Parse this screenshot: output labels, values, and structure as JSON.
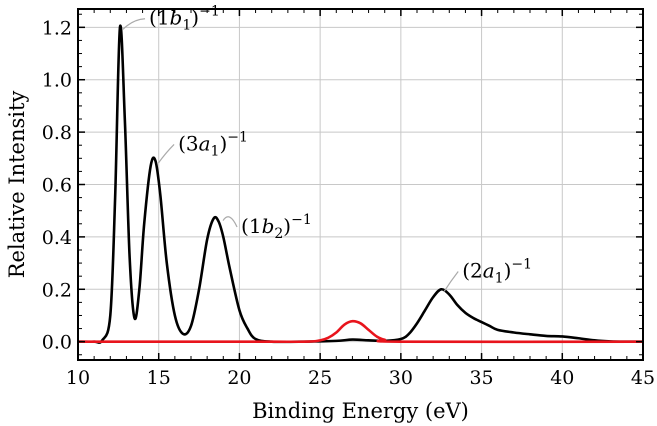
{
  "chart_data": {
    "type": "line",
    "xlabel": "Binding Energy (eV)",
    "ylabel": "Relative Intensity",
    "xlim": [
      10,
      45
    ],
    "ylim": [
      -0.07,
      1.27
    ],
    "xticks": [
      10,
      15,
      20,
      25,
      30,
      35,
      40,
      45
    ],
    "xtick_labels": [
      "10",
      "15",
      "20",
      "25",
      "30",
      "35",
      "40",
      "45"
    ],
    "yticks": [
      0.0,
      0.2,
      0.4,
      0.6,
      0.8,
      1.0,
      1.2
    ],
    "ytick_labels": [
      "0.0",
      "0.2",
      "0.4",
      "0.6",
      "0.8",
      "1.0",
      "1.2"
    ],
    "grid": true,
    "series": [
      {
        "color": "#000000",
        "x": [
          10,
          11,
          11.5,
          12,
          12.3,
          12.6,
          12.9,
          13.2,
          13.5,
          13.8,
          14.1,
          14.5,
          14.8,
          15.1,
          15.5,
          16,
          16.5,
          17,
          17.5,
          18,
          18.4,
          18.7,
          19,
          19.4,
          20,
          20.5,
          21,
          22,
          24,
          26,
          27,
          28,
          29,
          30,
          30.5,
          31,
          31.5,
          32,
          32.5,
          33,
          33.5,
          34,
          34.5,
          35,
          35.5,
          36,
          37,
          38,
          39,
          40,
          41,
          42,
          43,
          44,
          45
        ],
        "y": [
          0,
          0,
          0.005,
          0.1,
          0.55,
          1.2,
          0.85,
          0.32,
          0.09,
          0.2,
          0.45,
          0.67,
          0.69,
          0.56,
          0.3,
          0.1,
          0.03,
          0.06,
          0.2,
          0.39,
          0.47,
          0.46,
          0.4,
          0.28,
          0.12,
          0.05,
          0.01,
          0,
          0,
          0.003,
          0.008,
          0.005,
          0.003,
          0.01,
          0.03,
          0.07,
          0.12,
          0.17,
          0.2,
          0.18,
          0.14,
          0.11,
          0.09,
          0.075,
          0.06,
          0.045,
          0.035,
          0.028,
          0.022,
          0.02,
          0.013,
          0.005,
          0.001,
          0,
          0
        ]
      },
      {
        "color": "#e8141c",
        "x": [
          10,
          20,
          24,
          25,
          25.5,
          26,
          26.5,
          27,
          27.5,
          28,
          28.5,
          29,
          30,
          45
        ],
        "y": [
          0,
          0,
          0,
          0.005,
          0.015,
          0.035,
          0.065,
          0.078,
          0.07,
          0.045,
          0.02,
          0.007,
          0,
          0
        ]
      }
    ],
    "annotations": [
      {
        "label": "(1b1)",
        "orb": "b",
        "sub": "1",
        "lead": "1",
        "sup": "−1",
        "x": 12.6,
        "y": 1.2,
        "tx": 14.4,
        "ty": 1.21
      },
      {
        "label": "(3a1)",
        "orb": "a",
        "sub": "1",
        "lead": "3",
        "sup": "−1",
        "x": 14.8,
        "y": 0.69,
        "tx": 16.2,
        "ty": 0.73
      },
      {
        "label": "(1b2)",
        "orb": "b",
        "sub": "2",
        "lead": "1",
        "sup": "−1",
        "x": 18.8,
        "y": 0.47,
        "tx": 20.1,
        "ty": 0.415
      },
      {
        "label": "(2a1)",
        "orb": "a",
        "sub": "1",
        "lead": "2",
        "sup": "−1",
        "x": 32.5,
        "y": 0.2,
        "tx": 33.8,
        "ty": 0.245
      }
    ]
  }
}
